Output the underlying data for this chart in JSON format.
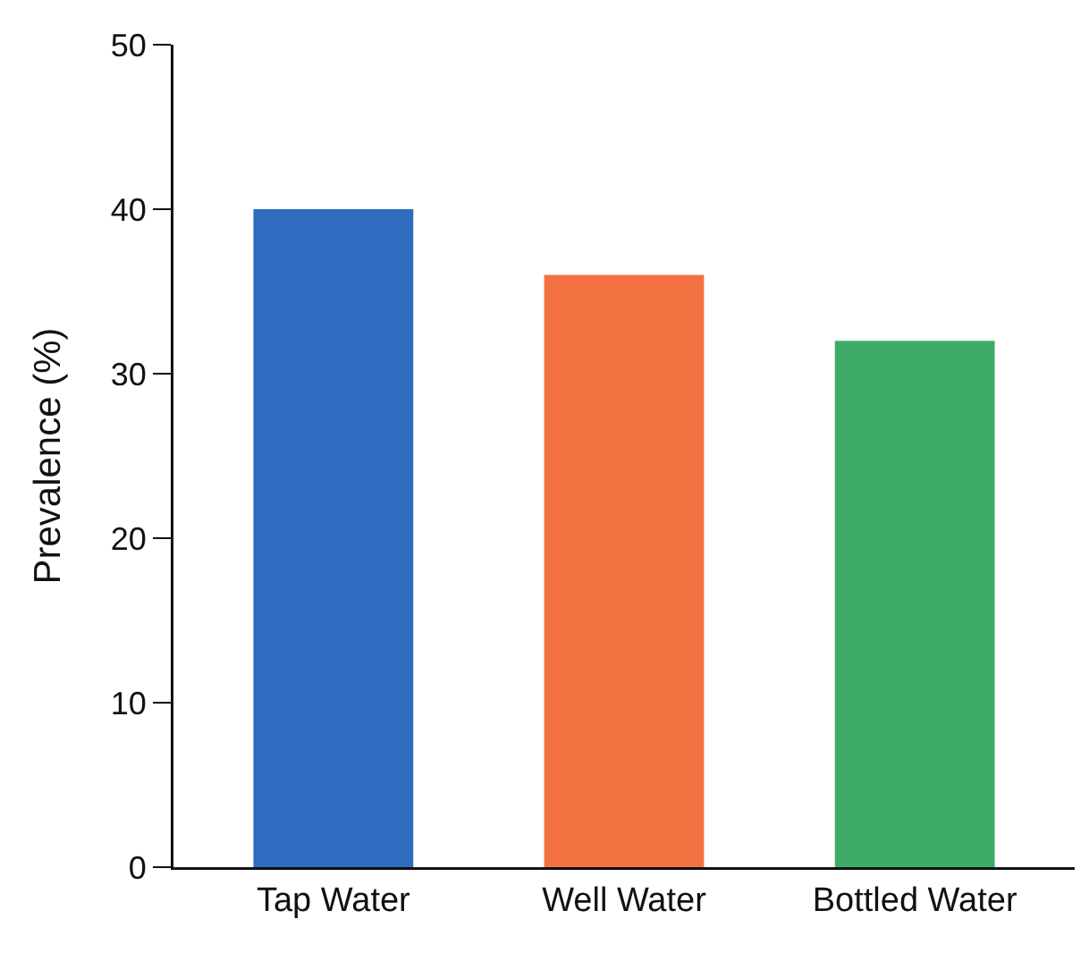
{
  "chart_data": {
    "type": "bar",
    "ylabel": "Prevalence (%)",
    "categories": [
      "Tap Water",
      "Well Water",
      "Bottled Water"
    ],
    "values": [
      40,
      36,
      32
    ],
    "colors": [
      "#2f6bbf",
      "#f47242",
      "#3dab66"
    ],
    "ylim": [
      0,
      50
    ],
    "yticks": [
      0,
      10,
      20,
      30,
      40,
      50
    ],
    "grid": false
  }
}
